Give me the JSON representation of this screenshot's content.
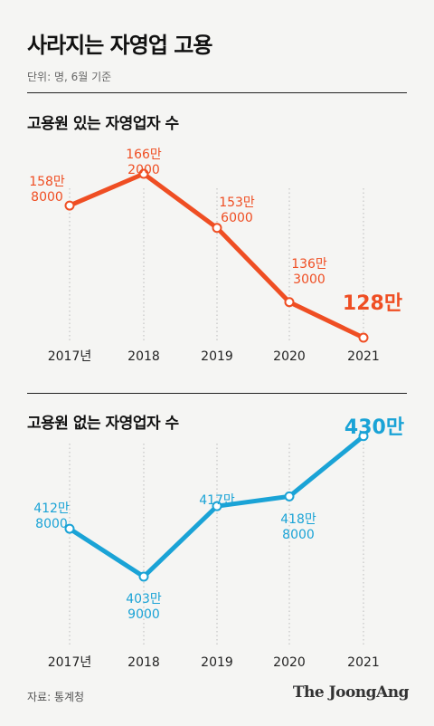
{
  "title": "사라지는 자영업 고용",
  "unit_note": "단위: 명, 6월 기준",
  "source": "자료: 통계청",
  "brand": "The JoongAng",
  "colors": {
    "series1": "#ef4e23",
    "series2": "#1aa3d6",
    "grid": "#bbbbbb"
  },
  "chart_data": [
    {
      "type": "line",
      "title": "고용원 있는 자영업자 수",
      "categories": [
        "2017년",
        "2018",
        "2019",
        "2020",
        "2021"
      ],
      "values": [
        1588000,
        1662000,
        1536000,
        1363000,
        1280000
      ],
      "labels": [
        [
          "158만",
          "8000"
        ],
        [
          "166만",
          "2000"
        ],
        [
          "153만",
          "6000"
        ],
        [
          "136만",
          "3000"
        ],
        [
          "128만"
        ]
      ],
      "ylim": [
        1240000,
        1700000
      ],
      "grid": "vertical-dotted"
    },
    {
      "type": "line",
      "title": "고용원 없는 자영업자 수",
      "categories": [
        "2017년",
        "2018",
        "2019",
        "2020",
        "2021"
      ],
      "values": [
        4128000,
        4039000,
        4170000,
        4188000,
        4300000
      ],
      "labels": [
        [
          "412만",
          "8000"
        ],
        [
          "403만",
          "9000"
        ],
        [
          "417만"
        ],
        [
          "418만",
          "8000"
        ],
        [
          "430만"
        ]
      ],
      "ylim": [
        3960000,
        4340000
      ],
      "grid": "vertical-dotted"
    }
  ]
}
